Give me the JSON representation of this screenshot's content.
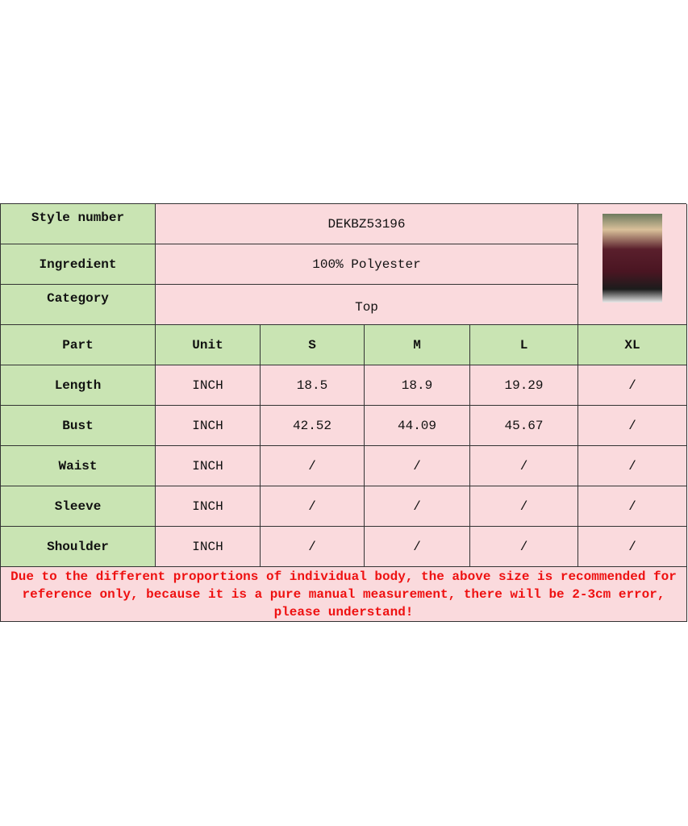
{
  "info": [
    {
      "label": "Style number",
      "value": "DEKBZ53196"
    },
    {
      "label": "Ingredient",
      "value": "100% Polyester"
    },
    {
      "label": "Category",
      "value": "Top"
    }
  ],
  "header": [
    "Part",
    "Unit",
    "S",
    "M",
    "L",
    "XL"
  ],
  "rows": [
    [
      "Length",
      "INCH",
      "18.5",
      "18.9",
      "19.29",
      "/"
    ],
    [
      "Bust",
      "INCH",
      "42.52",
      "44.09",
      "45.67",
      "/"
    ],
    [
      "Waist",
      "INCH",
      "/",
      "/",
      "/",
      "/"
    ],
    [
      "Sleeve",
      "INCH",
      "/",
      "/",
      "/",
      "/"
    ],
    [
      "Shoulder",
      "INCH",
      "/",
      "/",
      "/",
      "/"
    ]
  ],
  "note": "Due to the different proportions of individual body, the above size is recommended for reference only, because it is a pure manual measurement, there will be 2-3cm error, please understand!",
  "colors": {
    "header_bg": "#c9e4b3",
    "cell_bg": "#fadadd",
    "note_text": "#ee1111"
  }
}
